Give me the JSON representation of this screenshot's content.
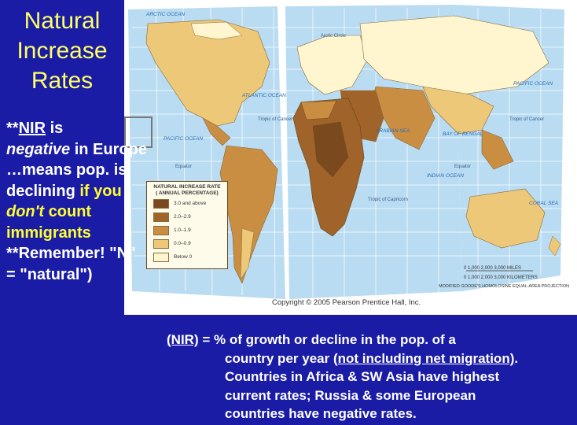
{
  "title": {
    "line1": "Natural",
    "line2": "Increase",
    "line3": "Rates"
  },
  "left_note": {
    "prefix": "**",
    "nir": "NIR",
    "is": " is",
    "negative": "negative",
    "in_europe": " in Europe …means pop. is declining ",
    "if_you": "if you",
    "dont": " don't",
    "count_imm": " count immigrants",
    "remember": "**Remember! \"N\" = \"natural\")"
  },
  "map": {
    "legend_title": "NATURAL INCREASE RATE",
    "legend_subtitle": "( ANNUAL PERCENTAGE)",
    "legend_items": [
      {
        "label": "3.0 and above",
        "color": "#7a4a1e"
      },
      {
        "label": "2.0–2.9",
        "color": "#a0642a"
      },
      {
        "label": "1.0–1.9",
        "color": "#c98e42"
      },
      {
        "label": "0.0–0.9",
        "color": "#ecc878"
      },
      {
        "label": "Below 0",
        "color": "#fff6d0"
      }
    ],
    "copyright": "Copyright © 2005 Pearson Prentice Hall, Inc.",
    "projection": "MODIFIED GOODE'S HOMOLOSINE EQUAL-AREA PROJECTION",
    "scale_miles": "0    1,000    2,000    3,000 MILES",
    "scale_km": "0  1,000  2,000  3,000 KILOMETERS",
    "labels": {
      "arctic_ocean": "ARCTIC OCEAN",
      "arctic_circle": "Arctic Circle",
      "atlantic": "ATLANTIC OCEAN",
      "pacific_w": "PACIFIC OCEAN",
      "pacific_e": "PACIFIC OCEAN",
      "indian": "INDIAN OCEAN",
      "arabian": "ARABIAN SEA",
      "bengal": "BAY OF BENGAL",
      "coral": "CORAL SEA",
      "tropic_cancer_w": "Tropic of Cancer",
      "tropic_cancer_e": "Tropic of Cancer",
      "tropic_capricorn": "Tropic of Capricorn",
      "equator_w": "Equator",
      "equator_e": "Equator"
    }
  },
  "bottom_note": {
    "nir": "(NIR)",
    "eq": " =  % of  growth or decline in the pop. of a",
    "line2a": "country per year ",
    "line2b": "(not including net migration)",
    "line2c": ".",
    "line3": "Countries in Africa & SW Asia have highest",
    "line4": "current rates;  Russia & some European",
    "line5": "countries have negative rates."
  },
  "colors": {
    "background": "#1a1ca6",
    "title": "#ffff66",
    "highlight": "#ffff33",
    "ocean": "#b9dcf2",
    "grid": "#ffffff"
  }
}
